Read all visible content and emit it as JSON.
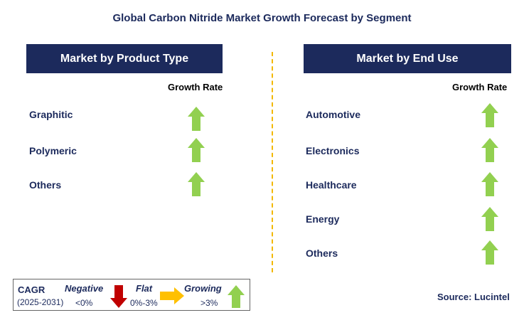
{
  "title": "Global Carbon Nitride Market Growth Forecast by Segment",
  "left": {
    "header": "Market by Product Type",
    "growth_label": "Growth Rate",
    "items": [
      {
        "label": "Graphitic",
        "trend": "growing"
      },
      {
        "label": "Polymeric",
        "trend": "growing"
      },
      {
        "label": "Others",
        "trend": "growing"
      }
    ]
  },
  "right": {
    "header": "Market by End Use",
    "growth_label": "Growth Rate",
    "items": [
      {
        "label": "Automotive",
        "trend": "growing"
      },
      {
        "label": "Electronics",
        "trend": "growing"
      },
      {
        "label": "Healthcare",
        "trend": "growing"
      },
      {
        "label": "Energy",
        "trend": "growing"
      },
      {
        "label": "Others",
        "trend": "growing"
      }
    ]
  },
  "legend": {
    "cagr": "CAGR",
    "period": "(2025-2031)",
    "negative": "Negative",
    "negative_range": "<0%",
    "flat": "Flat",
    "flat_range": "0%-3%",
    "growing": "Growing",
    "growing_range": ">3%"
  },
  "source": "Source: Lucintel",
  "colors": {
    "navy": "#1c2a5c",
    "growing": "#92d050",
    "negative": "#c00000",
    "flat": "#ffc000",
    "divider": "#f2b800"
  }
}
